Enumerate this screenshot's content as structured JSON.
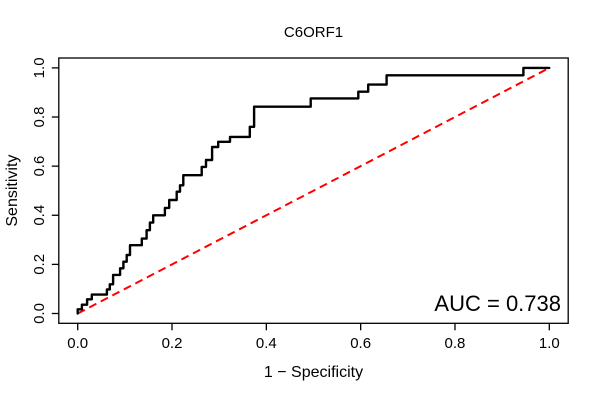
{
  "page": {
    "background": "#FFFFFF"
  },
  "chart_data": {
    "type": "line",
    "subtype": "roc-step-curve",
    "title": "C6ORF1",
    "xlabel": "1 − Specificity",
    "ylabel": "Sensitivity",
    "xlim": [
      -0.04,
      1.04
    ],
    "ylim": [
      -0.04,
      1.04
    ],
    "x_ticks": [
      0.0,
      0.2,
      0.4,
      0.6,
      0.8,
      1.0
    ],
    "y_ticks": [
      0.0,
      0.2,
      0.4,
      0.6,
      0.8,
      1.0
    ],
    "grid": false,
    "legend_position": "none",
    "annotation": {
      "text": "AUC = 0.738",
      "value": 0.738,
      "position": "bottom-right-inside"
    },
    "series": [
      {
        "name": "ROC curve",
        "color": "#000000",
        "line_style": "solid",
        "line_width": 2.4,
        "step": true,
        "points": [
          [
            0,
            0
          ],
          [
            0,
            0.017
          ],
          [
            0.009,
            0.017
          ],
          [
            0.009,
            0.036
          ],
          [
            0.02,
            0.036
          ],
          [
            0.02,
            0.058
          ],
          [
            0.03,
            0.058
          ],
          [
            0.03,
            0.077
          ],
          [
            0.062,
            0.077
          ],
          [
            0.062,
            0.098
          ],
          [
            0.068,
            0.098
          ],
          [
            0.068,
            0.119
          ],
          [
            0.075,
            0.119
          ],
          [
            0.075,
            0.157
          ],
          [
            0.09,
            0.157
          ],
          [
            0.09,
            0.184
          ],
          [
            0.097,
            0.184
          ],
          [
            0.097,
            0.211
          ],
          [
            0.104,
            0.211
          ],
          [
            0.104,
            0.238
          ],
          [
            0.111,
            0.238
          ],
          [
            0.111,
            0.278
          ],
          [
            0.136,
            0.278
          ],
          [
            0.136,
            0.305
          ],
          [
            0.146,
            0.305
          ],
          [
            0.146,
            0.339
          ],
          [
            0.153,
            0.339
          ],
          [
            0.153,
            0.37
          ],
          [
            0.16,
            0.37
          ],
          [
            0.16,
            0.4
          ],
          [
            0.185,
            0.4
          ],
          [
            0.185,
            0.43
          ],
          [
            0.194,
            0.43
          ],
          [
            0.194,
            0.462
          ],
          [
            0.21,
            0.462
          ],
          [
            0.21,
            0.496
          ],
          [
            0.217,
            0.496
          ],
          [
            0.217,
            0.522
          ],
          [
            0.224,
            0.522
          ],
          [
            0.224,
            0.563
          ],
          [
            0.263,
            0.563
          ],
          [
            0.263,
            0.597
          ],
          [
            0.272,
            0.597
          ],
          [
            0.272,
            0.625
          ],
          [
            0.285,
            0.625
          ],
          [
            0.285,
            0.678
          ],
          [
            0.298,
            0.678
          ],
          [
            0.298,
            0.699
          ],
          [
            0.323,
            0.699
          ],
          [
            0.323,
            0.719
          ],
          [
            0.365,
            0.719
          ],
          [
            0.365,
            0.76
          ],
          [
            0.374,
            0.76
          ],
          [
            0.374,
            0.842
          ],
          [
            0.494,
            0.842
          ],
          [
            0.494,
            0.876
          ],
          [
            0.595,
            0.876
          ],
          [
            0.595,
            0.903
          ],
          [
            0.616,
            0.903
          ],
          [
            0.616,
            0.932
          ],
          [
            0.655,
            0.932
          ],
          [
            0.655,
            0.97
          ],
          [
            0.945,
            0.97
          ],
          [
            0.945,
            1.0
          ],
          [
            1.0,
            1.0
          ]
        ]
      },
      {
        "name": "Chance diagonal",
        "color": "#FF0000",
        "line_style": "dashed",
        "line_width": 2,
        "step": false,
        "points": [
          [
            0,
            0
          ],
          [
            1,
            1
          ]
        ]
      }
    ]
  }
}
